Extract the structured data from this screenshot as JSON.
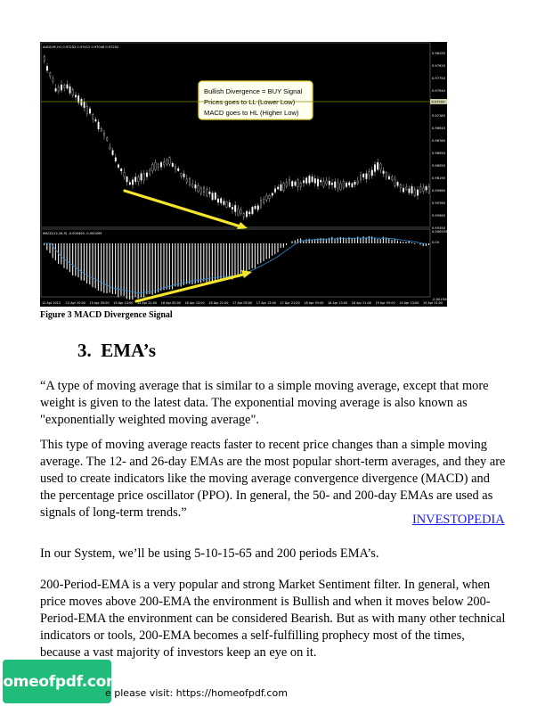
{
  "figure": {
    "caption": "Figure 3 MACD Divergence Signal",
    "symbol_header": "AUDCHF,H1 0.97202 0.97412 0.97046 0.97202",
    "macd_header": "MACD(12,26,9) -0.000490 -0.000499",
    "callout": {
      "line1": "Bullish Divergence =  BUY Signal",
      "line2": "Prices goes to LL (Lower Low)",
      "line3": "MACD goes to HL (Higher Low)"
    },
    "price_axis": [
      "0.98195",
      "0.97920",
      "0.97750",
      "0.97540",
      "0.97330",
      "0.97185",
      "0.96945",
      "0.96760",
      "0.96550",
      "0.96350",
      "0.96190",
      "0.95960",
      "0.95760",
      "0.95565",
      "0.95350"
    ],
    "price_marker": "0.97202",
    "macd_axis": [
      "0.000553",
      "0.00",
      "-0.001934"
    ],
    "time_axis": [
      "12 Apr 2013",
      "12 Apr 20:00",
      "15 Apr 05:00",
      "15 Apr 13:00",
      "15 Apr 21:00",
      "16 Apr 05:00",
      "16 Apr 13:00",
      "16 Apr 21:00",
      "17 Apr 05:00",
      "17 Apr 13:00",
      "17 Apr 21:00",
      "18 Apr 05:00",
      "18 Apr 13:00",
      "18 Apr 21:00",
      "19 Apr 05:00",
      "19 Apr 13:00",
      "19 Apr 21:00"
    ],
    "colors": {
      "background": "#000000",
      "candles": "#ffffff",
      "arrow": "#f5e62a",
      "signal_line": "#2a8fd8",
      "level_line": "#8a8a00"
    }
  },
  "section": {
    "number": "3.",
    "title": "EMA’s"
  },
  "body": {
    "quote_p1": "“A type of moving average that is similar to a simple moving average, except that more weight is given to the latest data. The exponential moving average is also known as \"exponentially weighted moving average\".",
    "quote_p2": "This type of moving average reacts faster to recent price changes than a simple moving average. The 12- and 26-day EMAs are the most popular short-term averages, and they are used to create indicators like the moving average convergence divergence (MACD) and the percentage price oscillator (PPO). In general, the 50- and 200-day EMAs are used as signals of long-term trends.”",
    "source_link": "INVESTOPEDIA",
    "p3": "In our System, we’ll be using 5-10-15-65 and 200 periods EMA’s.",
    "p4": "200-Period-EMA is a very popular and strong Market Sentiment filter.  In general, when price moves above 200-EMA the environment is Bullish and when it moves below 200-Period-EMA the environment can be considered Bearish. But as with many other technical indicators or tools, 200-EMA becomes a self-fulfilling prophecy most of the times, because a vast majority of investors keep an eye on it."
  },
  "footer": {
    "logo_text": "homeofpdf.com",
    "visit_text": "e please visit: https://homeofpdf.com"
  }
}
